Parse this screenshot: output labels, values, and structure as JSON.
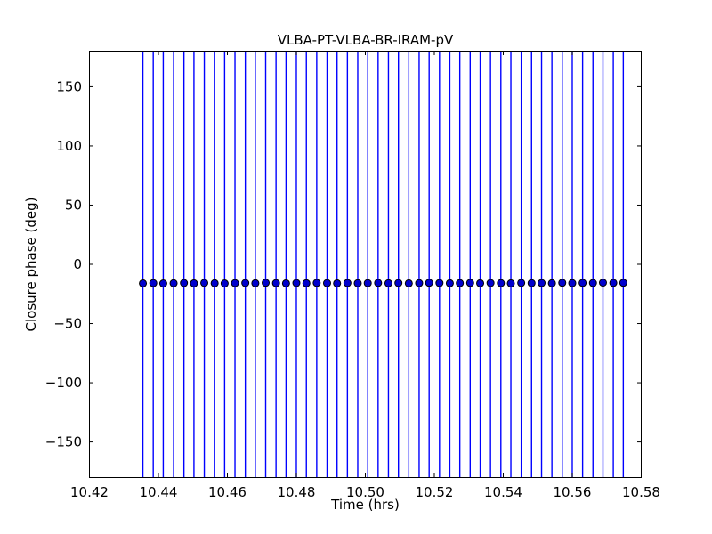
{
  "figure": {
    "background": "#ffffff",
    "frame_color": "#000000"
  },
  "chart_data": {
    "type": "scatter",
    "title": "VLBA-PT-VLBA-BR-IRAM-pV",
    "xlabel": "Time (hrs)",
    "ylabel": "Closure phase (deg)",
    "xlim": [
      10.42,
      10.58
    ],
    "ylim": [
      -180,
      180
    ],
    "xticks": [
      10.42,
      10.44,
      10.46,
      10.48,
      10.5,
      10.52,
      10.54,
      10.56,
      10.58
    ],
    "yticks": [
      -150,
      -100,
      -50,
      0,
      50,
      100,
      150
    ],
    "grid": false,
    "legend": null,
    "tick_direction": "in",
    "marker": "circle",
    "marker_color": "#0000cd",
    "marker_edge_color": "#000000",
    "errorbar_color": "#0000ff",
    "errorbars_span_full_range": true,
    "series": [
      {
        "name": "closure phase",
        "x": [
          10.4355,
          10.4385,
          10.4414,
          10.4444,
          10.4474,
          10.4503,
          10.4533,
          10.4563,
          10.4592,
          10.4622,
          10.4652,
          10.4681,
          10.4711,
          10.4741,
          10.477,
          10.48,
          10.4829,
          10.4859,
          10.4889,
          10.4918,
          10.4948,
          10.4978,
          10.5007,
          10.5037,
          10.5067,
          10.5096,
          10.5126,
          10.5156,
          10.5185,
          10.5215,
          10.5245,
          10.5274,
          10.5304,
          10.5333,
          10.5363,
          10.5393,
          10.5422,
          10.5452,
          10.5482,
          10.5511,
          10.5541,
          10.5571,
          10.56,
          10.563,
          10.566,
          10.5689,
          10.5719,
          10.5748
        ],
        "y": [
          -16.1,
          -15.9,
          -16.2,
          -16.0,
          -15.8,
          -16.1,
          -15.7,
          -16.0,
          -16.2,
          -15.9,
          -15.8,
          -16.0,
          -15.6,
          -15.9,
          -16.1,
          -15.8,
          -16.0,
          -15.7,
          -15.9,
          -16.1,
          -15.8,
          -16.0,
          -15.9,
          -15.7,
          -16.0,
          -15.8,
          -16.1,
          -15.9,
          -15.6,
          -15.8,
          -16.0,
          -15.9,
          -15.7,
          -16.0,
          -15.8,
          -15.9,
          -16.1,
          -15.7,
          -15.9,
          -15.8,
          -16.0,
          -15.6,
          -15.9,
          -15.7,
          -15.8,
          -15.5,
          -15.7,
          -15.6
        ]
      }
    ]
  }
}
